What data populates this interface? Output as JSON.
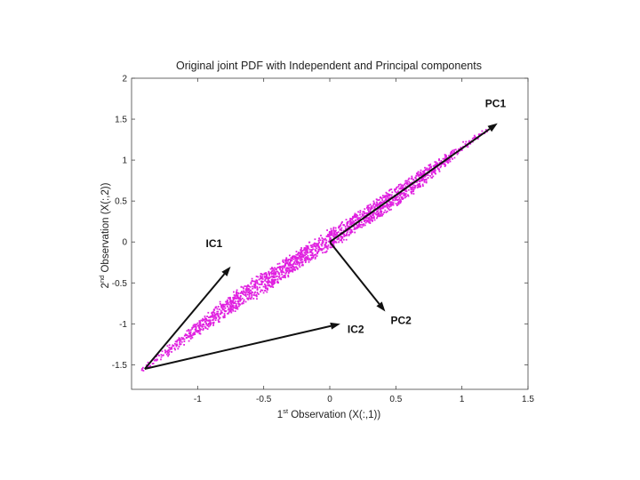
{
  "chart_data": {
    "type": "scatter",
    "title": "Original joint PDF with Independent and Principal components",
    "xlabel": {
      "prefix": "1",
      "sup": "st",
      "suffix": " Observation (X(:,1))"
    },
    "ylabel": {
      "prefix": "2",
      "sup": "nd",
      "suffix": " Observation (X(:,2))"
    },
    "xlim": [
      -1.5,
      1.5
    ],
    "ylim": [
      -1.8,
      2.0
    ],
    "x_ticks": [
      "-1",
      "-0.5",
      "0",
      "0.5",
      "1",
      "1.5"
    ],
    "y_ticks": [
      "-1.5",
      "-1",
      "-0.5",
      "0",
      "0.5",
      "1",
      "1.5",
      "2"
    ],
    "grid": false,
    "point_color": "#e020e0",
    "point_count_approx": 2000,
    "distribution": {
      "shape": "uniform parallelogram",
      "corners": [
        [
          -1.45,
          -1.6
        ],
        [
          -0.75,
          -0.65
        ],
        [
          1.35,
          1.45
        ],
        [
          0.55,
          0.5
        ]
      ]
    },
    "vectors": [
      {
        "label": "IC1",
        "from": [
          -1.4,
          -1.55
        ],
        "to": [
          -0.75,
          -0.3
        ]
      },
      {
        "label": "IC2",
        "from": [
          -1.4,
          -1.55
        ],
        "to": [
          0.08,
          -1.0
        ]
      },
      {
        "label": "PC1",
        "from": [
          0.0,
          0.0
        ],
        "to": [
          1.27,
          1.45
        ]
      },
      {
        "label": "PC2",
        "from": [
          0.0,
          0.0
        ],
        "to": [
          0.42,
          -0.85
        ]
      }
    ],
    "arrow_color": "#111111"
  }
}
